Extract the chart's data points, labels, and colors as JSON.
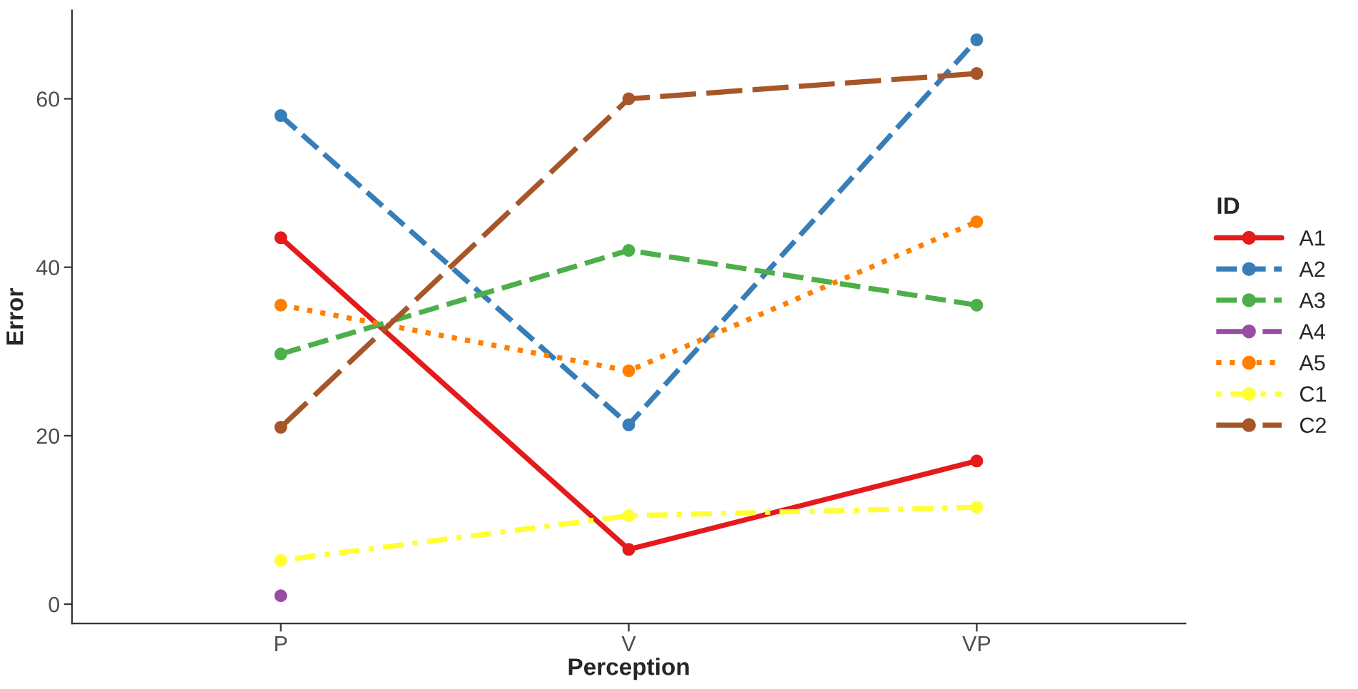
{
  "chart_data": {
    "type": "line",
    "xlabel": "Perception",
    "ylabel": "Error",
    "legend_title": "ID",
    "categories": [
      "P",
      "V",
      "VP"
    ],
    "series": [
      {
        "name": "A1",
        "color": "#e41a1c",
        "line_style": "solid",
        "values": [
          43.5,
          6.5,
          17
        ]
      },
      {
        "name": "A2",
        "color": "#377eb8",
        "line_style": "dashed",
        "values": [
          58,
          21.3,
          67
        ]
      },
      {
        "name": "A3",
        "color": "#4daf4a",
        "line_style": "dashed",
        "values": [
          29.7,
          42,
          35.5
        ]
      },
      {
        "name": "A4",
        "color": "#984ea3",
        "line_style": "longdash",
        "values": [
          1,
          null,
          null
        ]
      },
      {
        "name": "A5",
        "color": "#ff7f00",
        "line_style": "dotted",
        "values": [
          35.5,
          27.7,
          45.4
        ]
      },
      {
        "name": "C1",
        "color": "#ffff33",
        "line_style": "dashdot",
        "values": [
          5.2,
          10.5,
          11.5
        ]
      },
      {
        "name": "C2",
        "color": "#a65628",
        "line_style": "longdash",
        "values": [
          21,
          60,
          63
        ]
      }
    ],
    "ylim": [
      -2.3,
      70.5
    ],
    "yticks": [
      0,
      20,
      40,
      60
    ],
    "marker": "circle",
    "grid": false,
    "legend": "right"
  }
}
